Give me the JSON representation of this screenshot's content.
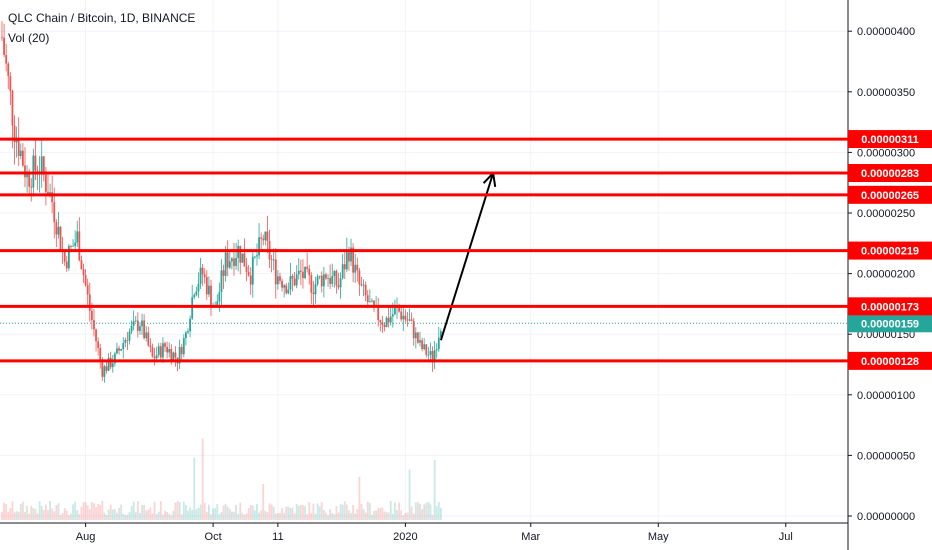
{
  "legend": {
    "symbol_line": "QLC Chain / Bitcoin, 1D, BINANCE",
    "volume_line": "Vol (20)"
  },
  "colors": {
    "up": "#26a69a",
    "down": "#ef5350",
    "level": "#ff0000",
    "current": "#26a69a",
    "grid": "#f0f3fa",
    "axis_text": "#131722",
    "arrow": "#000000"
  },
  "chart_data": {
    "type": "candlestick",
    "title": "QLC Chain / Bitcoin, 1D, BINANCE",
    "indicator": "Vol (20)",
    "x_axis": {
      "type": "date",
      "range": [
        "2019-06-22",
        "2020-07-26"
      ],
      "tick_labels": [
        {
          "label": "Aug",
          "date": "2019-08-01"
        },
        {
          "label": "Oct",
          "date": "2019-10-01"
        },
        {
          "label": "11",
          "date": "2019-11-01"
        },
        {
          "label": "2020",
          "date": "2020-01-01"
        },
        {
          "label": "Mar",
          "date": "2020-03-01"
        },
        {
          "label": "May",
          "date": "2020-05-01"
        },
        {
          "label": "Jul",
          "date": "2020-07-01"
        }
      ]
    },
    "y_axis": {
      "range": [
        0.0,
        4.2e-06
      ],
      "tick_labels": [
        "0.00000400",
        "0.00000350",
        "0.00000300",
        "0.00000250",
        "0.00000200",
        "0.00000150",
        "0.00000100",
        "0.00000050",
        "0.00000000"
      ],
      "tick_values": [
        4e-06,
        3.5e-06,
        3e-06,
        2.5e-06,
        2e-06,
        1.5e-06,
        1e-06,
        5e-07,
        0.0
      ]
    },
    "horizontal_levels": [
      {
        "value": 3.11e-06,
        "label": "0.00000311"
      },
      {
        "value": 2.83e-06,
        "label": "0.00000283"
      },
      {
        "value": 2.65e-06,
        "label": "0.00000265"
      },
      {
        "value": 2.19e-06,
        "label": "0.00000219"
      },
      {
        "value": 1.73e-06,
        "label": "0.00000173"
      },
      {
        "value": 1.28e-06,
        "label": "0.00000128"
      }
    ],
    "current_price": {
      "value": 1.59e-06,
      "label": "0.00000159"
    },
    "arrow": {
      "from": [
        "2020-01-18",
        1.45e-06
      ],
      "to": [
        "2020-02-12",
        2.83e-06
      ]
    },
    "price_path": [
      [
        "2019-06-22",
        3.95e-06
      ],
      [
        "2019-06-28",
        3.2e-06
      ],
      [
        "2019-07-04",
        2.8e-06
      ],
      [
        "2019-07-10",
        2.9e-06
      ],
      [
        "2019-07-16",
        2.6e-06
      ],
      [
        "2019-07-22",
        2.1e-06
      ],
      [
        "2019-07-28",
        2.3e-06
      ],
      [
        "2019-08-03",
        1.7e-06
      ],
      [
        "2019-08-09",
        1.2e-06
      ],
      [
        "2019-08-15",
        1.3e-06
      ],
      [
        "2019-08-21",
        1.5e-06
      ],
      [
        "2019-08-27",
        1.6e-06
      ],
      [
        "2019-09-02",
        1.3e-06
      ],
      [
        "2019-09-08",
        1.4e-06
      ],
      [
        "2019-09-14",
        1.3e-06
      ],
      [
        "2019-09-18",
        1.5e-06
      ],
      [
        "2019-09-22",
        1.9e-06
      ],
      [
        "2019-09-26",
        2e-06
      ],
      [
        "2019-10-02",
        1.7e-06
      ],
      [
        "2019-10-07",
        2.1e-06
      ],
      [
        "2019-10-13",
        2.2e-06
      ],
      [
        "2019-10-19",
        2e-06
      ],
      [
        "2019-10-25",
        2.3e-06
      ],
      [
        "2019-10-31",
        2e-06
      ],
      [
        "2019-11-06",
        1.9e-06
      ],
      [
        "2019-11-12",
        2e-06
      ],
      [
        "2019-11-18",
        1.9e-06
      ],
      [
        "2019-11-24",
        2e-06
      ],
      [
        "2019-11-30",
        1.9e-06
      ],
      [
        "2019-12-05",
        2.2e-06
      ],
      [
        "2019-12-10",
        1.9e-06
      ],
      [
        "2019-12-16",
        1.7e-06
      ],
      [
        "2019-12-22",
        1.6e-06
      ],
      [
        "2019-12-28",
        1.7e-06
      ],
      [
        "2020-01-03",
        1.6e-06
      ],
      [
        "2020-01-08",
        1.4e-06
      ],
      [
        "2020-01-14",
        1.3e-06
      ],
      [
        "2020-01-18",
        1.59e-06
      ]
    ],
    "volume_spikes": [
      [
        "2019-09-22",
        0.52
      ],
      [
        "2019-09-26",
        0.68
      ],
      [
        "2019-10-25",
        0.3
      ],
      [
        "2019-12-10",
        0.36
      ],
      [
        "2020-01-03",
        0.42
      ],
      [
        "2020-01-15",
        0.5
      ]
    ]
  }
}
